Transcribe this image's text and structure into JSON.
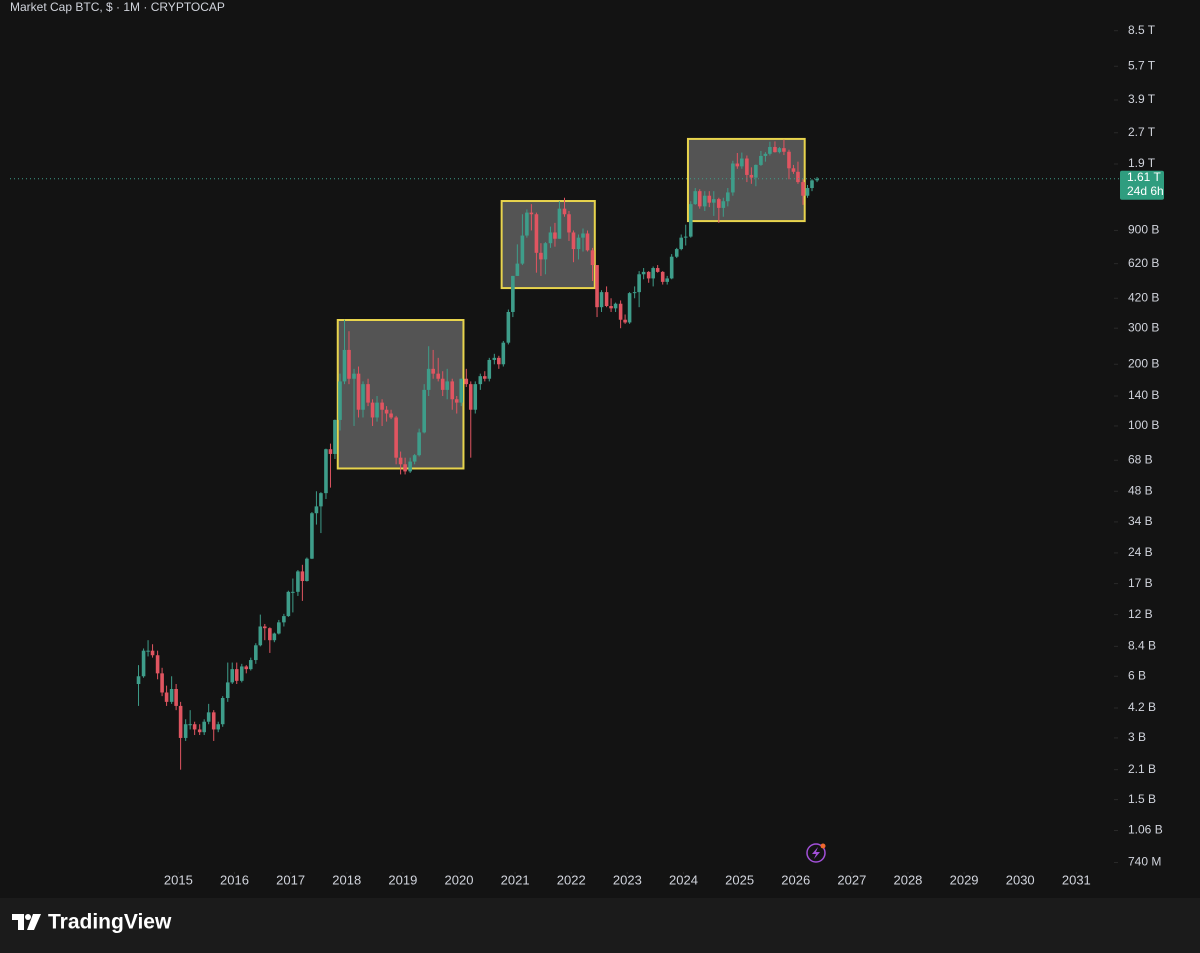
{
  "chart_data": {
    "type": "candlestick",
    "title": "Market Cap BTC, $ · 1M · CRYPTOCAP",
    "log_scale": true,
    "up_color": "#3e9d8a",
    "down_color": "#e05561",
    "x": [
      2014.29,
      2014.38,
      2014.46,
      2014.54,
      2014.63,
      2014.71,
      2014.79,
      2014.88,
      2014.96,
      2015.04,
      2015.13,
      2015.21,
      2015.29,
      2015.38,
      2015.46,
      2015.54,
      2015.63,
      2015.71,
      2015.79,
      2015.88,
      2015.96,
      2016.04,
      2016.13,
      2016.21,
      2016.29,
      2016.38,
      2016.46,
      2016.54,
      2016.63,
      2016.71,
      2016.79,
      2016.88,
      2016.96,
      2017.04,
      2017.13,
      2017.21,
      2017.29,
      2017.38,
      2017.46,
      2017.54,
      2017.63,
      2017.71,
      2017.79,
      2017.88,
      2017.96,
      2018.04,
      2018.13,
      2018.21,
      2018.29,
      2018.38,
      2018.46,
      2018.54,
      2018.63,
      2018.71,
      2018.79,
      2018.88,
      2018.96,
      2019.04,
      2019.13,
      2019.21,
      2019.29,
      2019.38,
      2019.46,
      2019.54,
      2019.63,
      2019.71,
      2019.79,
      2019.88,
      2019.96,
      2020.04,
      2020.13,
      2020.21,
      2020.29,
      2020.38,
      2020.46,
      2020.54,
      2020.63,
      2020.71,
      2020.79,
      2020.88,
      2020.96,
      2021.04,
      2021.13,
      2021.21,
      2021.29,
      2021.38,
      2021.46,
      2021.54,
      2021.63,
      2021.71,
      2021.79,
      2021.88,
      2021.96,
      2022.04,
      2022.13,
      2022.21,
      2022.29,
      2022.38,
      2022.46,
      2022.54,
      2022.63,
      2022.71,
      2022.79,
      2022.88,
      2022.96,
      2023.04,
      2023.13,
      2023.21,
      2023.29,
      2023.38,
      2023.46,
      2023.54,
      2023.63,
      2023.71,
      2023.79,
      2023.88,
      2023.96,
      2024.04,
      2024.13,
      2024.21,
      2024.29,
      2024.38,
      2024.46,
      2024.54,
      2024.63,
      2024.71,
      2024.79,
      2024.88,
      2024.96,
      2025.04,
      2025.13,
      2025.21,
      2025.29,
      2025.38,
      2025.46,
      2025.54,
      2025.63,
      2025.71,
      2025.79,
      2025.88,
      2025.96,
      2026.04,
      2026.13,
      2026.21,
      2026.29,
      2026.38
    ],
    "candles": [
      [
        5.5,
        6.8,
        4.3,
        6.0
      ],
      [
        6.0,
        8.2,
        5.9,
        8.0
      ],
      [
        8.0,
        9.0,
        7.5,
        8.0
      ],
      [
        8.0,
        8.6,
        7.4,
        7.6
      ],
      [
        7.6,
        8.0,
        5.8,
        6.2
      ],
      [
        6.2,
        6.6,
        4.8,
        5.0
      ],
      [
        5.0,
        5.4,
        4.3,
        4.5
      ],
      [
        4.5,
        6.0,
        4.4,
        5.2
      ],
      [
        5.2,
        5.5,
        4.1,
        4.3
      ],
      [
        4.3,
        4.5,
        2.1,
        3.0
      ],
      [
        3.0,
        3.7,
        2.9,
        3.5
      ],
      [
        3.5,
        4.1,
        3.3,
        3.5
      ],
      [
        3.5,
        3.6,
        3.1,
        3.3
      ],
      [
        3.3,
        3.5,
        3.1,
        3.2
      ],
      [
        3.2,
        3.7,
        3.1,
        3.6
      ],
      [
        3.6,
        4.4,
        3.5,
        4.0
      ],
      [
        4.0,
        4.1,
        2.9,
        3.3
      ],
      [
        3.3,
        3.6,
        3.2,
        3.5
      ],
      [
        3.5,
        4.8,
        3.4,
        4.7
      ],
      [
        4.7,
        7.0,
        4.5,
        5.6
      ],
      [
        5.6,
        7.0,
        5.5,
        6.5
      ],
      [
        6.5,
        7.0,
        5.5,
        5.7
      ],
      [
        5.7,
        6.9,
        5.6,
        6.7
      ],
      [
        6.7,
        6.8,
        6.2,
        6.5
      ],
      [
        6.5,
        7.4,
        6.4,
        7.2
      ],
      [
        7.2,
        8.7,
        6.9,
        8.5
      ],
      [
        8.5,
        12.0,
        8.4,
        10.5
      ],
      [
        10.5,
        10.8,
        9.0,
        10.3
      ],
      [
        10.3,
        10.4,
        7.8,
        9.0
      ],
      [
        9.0,
        9.8,
        8.8,
        9.7
      ],
      [
        9.7,
        11.3,
        9.6,
        11.0
      ],
      [
        11.0,
        12.1,
        10.5,
        11.8
      ],
      [
        11.8,
        15.7,
        11.7,
        15.5
      ],
      [
        15.5,
        18.0,
        12.3,
        15.5
      ],
      [
        15.5,
        19.8,
        14.8,
        19.5
      ],
      [
        19.5,
        21.0,
        14.0,
        17.5
      ],
      [
        17.5,
        22.8,
        17.4,
        22.5
      ],
      [
        22.5,
        38.0,
        22.4,
        37.5
      ],
      [
        37.5,
        48.0,
        33.0,
        40.5
      ],
      [
        40.5,
        47.5,
        30.0,
        47.0
      ],
      [
        47.0,
        77.5,
        44.0,
        77.0
      ],
      [
        77.0,
        82.0,
        50.0,
        73.0
      ],
      [
        73.0,
        107.5,
        69.0,
        107.0
      ],
      [
        107.0,
        180.0,
        95.0,
        165.0
      ],
      [
        165.0,
        330.0,
        160.0,
        235.0
      ],
      [
        235,
        290,
        160,
        170
      ],
      [
        170,
        190,
        100,
        180
      ],
      [
        180,
        195,
        110,
        120
      ],
      [
        120,
        165,
        110,
        160
      ],
      [
        160,
        170,
        125,
        130
      ],
      [
        130,
        135,
        100,
        110
      ],
      [
        110,
        140,
        105,
        130
      ],
      [
        130,
        135,
        100,
        120
      ],
      [
        120,
        125,
        105,
        115
      ],
      [
        115,
        120,
        108,
        110
      ],
      [
        110,
        112,
        65,
        70
      ],
      [
        70,
        75,
        58,
        65
      ],
      [
        65,
        70,
        58,
        60
      ],
      [
        60,
        70,
        59,
        67
      ],
      [
        67,
        73,
        65,
        72
      ],
      [
        72,
        97,
        71,
        93
      ],
      [
        93,
        160,
        92,
        150
      ],
      [
        150,
        245,
        140,
        190
      ],
      [
        190,
        235,
        170,
        180
      ],
      [
        180,
        215,
        165,
        170
      ],
      [
        170,
        185,
        140,
        150
      ],
      [
        150,
        190,
        135,
        165
      ],
      [
        165,
        170,
        120,
        135
      ],
      [
        135,
        140,
        115,
        130
      ],
      [
        130,
        170,
        125,
        170
      ],
      [
        170,
        190,
        155,
        160
      ],
      [
        160,
        165,
        70,
        120
      ],
      [
        120,
        165,
        115,
        160
      ],
      [
        160,
        180,
        150,
        175
      ],
      [
        175,
        185,
        165,
        170
      ],
      [
        170,
        215,
        165,
        210
      ],
      [
        210,
        225,
        200,
        215
      ],
      [
        215,
        220,
        190,
        200
      ],
      [
        200,
        260,
        195,
        255
      ],
      [
        255,
        370,
        250,
        360
      ],
      [
        360,
        540,
        340,
        540
      ],
      [
        540,
        770,
        540,
        620
      ],
      [
        620,
        1080,
        610,
        850
      ],
      [
        850,
        1140,
        830,
        1100
      ],
      [
        1100,
        1210,
        900,
        1080
      ],
      [
        1080,
        1100,
        560,
        700
      ],
      [
        700,
        780,
        540,
        650
      ],
      [
        650,
        790,
        550,
        780
      ],
      [
        780,
        940,
        740,
        880
      ],
      [
        880,
        980,
        750,
        820
      ],
      [
        820,
        1250,
        820,
        1150
      ],
      [
        1150,
        1300,
        1050,
        1080
      ],
      [
        1080,
        1120,
        800,
        880
      ],
      [
        880,
        900,
        630,
        730
      ],
      [
        730,
        860,
        650,
        830
      ],
      [
        830,
        920,
        710,
        870
      ],
      [
        870,
        900,
        710,
        720
      ],
      [
        720,
        740,
        510,
        610
      ],
      [
        610,
        610,
        340,
        380
      ],
      [
        380,
        460,
        360,
        450
      ],
      [
        450,
        480,
        380,
        385
      ],
      [
        385,
        420,
        360,
        375
      ],
      [
        375,
        400,
        360,
        395
      ],
      [
        395,
        410,
        300,
        330
      ],
      [
        330,
        350,
        315,
        320
      ],
      [
        320,
        450,
        315,
        445
      ],
      [
        445,
        480,
        420,
        450
      ],
      [
        450,
        570,
        380,
        550
      ],
      [
        550,
        590,
        520,
        565
      ],
      [
        565,
        570,
        500,
        525
      ],
      [
        525,
        600,
        480,
        590
      ],
      [
        590,
        610,
        560,
        565
      ],
      [
        565,
        570,
        490,
        505
      ],
      [
        505,
        540,
        490,
        525
      ],
      [
        525,
        690,
        520,
        670
      ],
      [
        670,
        740,
        660,
        730
      ],
      [
        730,
        860,
        720,
        830
      ],
      [
        830,
        960,
        760,
        840
      ],
      [
        840,
        1250,
        830,
        1210
      ],
      [
        1210,
        1450,
        1200,
        1400
      ],
      [
        1400,
        1430,
        1150,
        1180
      ],
      [
        1180,
        1400,
        1120,
        1330
      ],
      [
        1330,
        1400,
        1170,
        1230
      ],
      [
        1230,
        1400,
        1060,
        1280
      ],
      [
        1280,
        1300,
        980,
        1160
      ],
      [
        1160,
        1300,
        1050,
        1250
      ],
      [
        1250,
        1450,
        1180,
        1380
      ],
      [
        1380,
        1970,
        1330,
        1910
      ],
      [
        1910,
        2150,
        1800,
        1850
      ],
      [
        1850,
        2160,
        1800,
        2020
      ],
      [
        2020,
        2090,
        1550,
        1680
      ],
      [
        1680,
        1830,
        1520,
        1630
      ],
      [
        1630,
        1890,
        1480,
        1880
      ],
      [
        1880,
        2200,
        1860,
        2080
      ],
      [
        2080,
        2170,
        1950,
        2130
      ],
      [
        2130,
        2440,
        2090,
        2300
      ],
      [
        2300,
        2450,
        2160,
        2170
      ],
      [
        2170,
        2300,
        2140,
        2270
      ],
      [
        2270,
        2500,
        2100,
        2180
      ],
      [
        2180,
        2230,
        1600,
        1810
      ],
      [
        1810,
        1880,
        1700,
        1740
      ],
      [
        1740,
        1950,
        1520,
        1550
      ],
      [
        1550,
        1600,
        1200,
        1330
      ],
      [
        1330,
        1500,
        1300,
        1450
      ],
      [
        1450,
        1600,
        1400,
        1580
      ],
      [
        1580,
        1640,
        1550,
        1610
      ]
    ],
    "xlim": [
      2012,
      2031.6
    ],
    "xticks": [
      2015,
      2016,
      2017,
      2018,
      2019,
      2020,
      2021,
      2022,
      2023,
      2024,
      2025,
      2026,
      2027,
      2028,
      2029,
      2030,
      2031
    ],
    "ylim": [
      0.68,
      12000
    ],
    "yticks": [
      {
        "value": 8500,
        "label": "8.5 T"
      },
      {
        "value": 5700,
        "label": "5.7 T"
      },
      {
        "value": 3900,
        "label": "3.9 T"
      },
      {
        "value": 2700,
        "label": "2.7 T"
      },
      {
        "value": 1900,
        "label": "1.9 T"
      },
      {
        "value": 900,
        "label": "900 B"
      },
      {
        "value": 620,
        "label": "620 B"
      },
      {
        "value": 420,
        "label": "420 B"
      },
      {
        "value": 300,
        "label": "300 B"
      },
      {
        "value": 200,
        "label": "200 B"
      },
      {
        "value": 140,
        "label": "140 B"
      },
      {
        "value": 100,
        "label": "100 B"
      },
      {
        "value": 68,
        "label": "68 B"
      },
      {
        "value": 48,
        "label": "48 B"
      },
      {
        "value": 34,
        "label": "34 B"
      },
      {
        "value": 24,
        "label": "24 B"
      },
      {
        "value": 17,
        "label": "17 B"
      },
      {
        "value": 12,
        "label": "12 B"
      },
      {
        "value": 8.4,
        "label": "8.4 B"
      },
      {
        "value": 6,
        "label": "6 B"
      },
      {
        "value": 4.2,
        "label": "4.2 B"
      },
      {
        "value": 3,
        "label": "3 B"
      },
      {
        "value": 2.1,
        "label": "2.1 B"
      },
      {
        "value": 1.5,
        "label": "1.5 B"
      },
      {
        "value": 1.06,
        "label": "1.06 B"
      },
      {
        "value": 0.74,
        "label": "740 M"
      }
    ],
    "last_price": {
      "value": 1610,
      "label": "1.61 T"
    },
    "countdown": "24d 6h",
    "boxes": [
      {
        "xlim": [
          2017.84,
          2020.08
        ],
        "ylim": [
          62,
          329
        ]
      },
      {
        "xlim": [
          2020.76,
          2022.42
        ],
        "ylim": [
          471,
          1253
        ]
      },
      {
        "xlim": [
          2024.08,
          2026.16
        ],
        "ylim": [
          1000,
          2518
        ]
      }
    ]
  },
  "footer": {
    "brand": "TradingView"
  }
}
